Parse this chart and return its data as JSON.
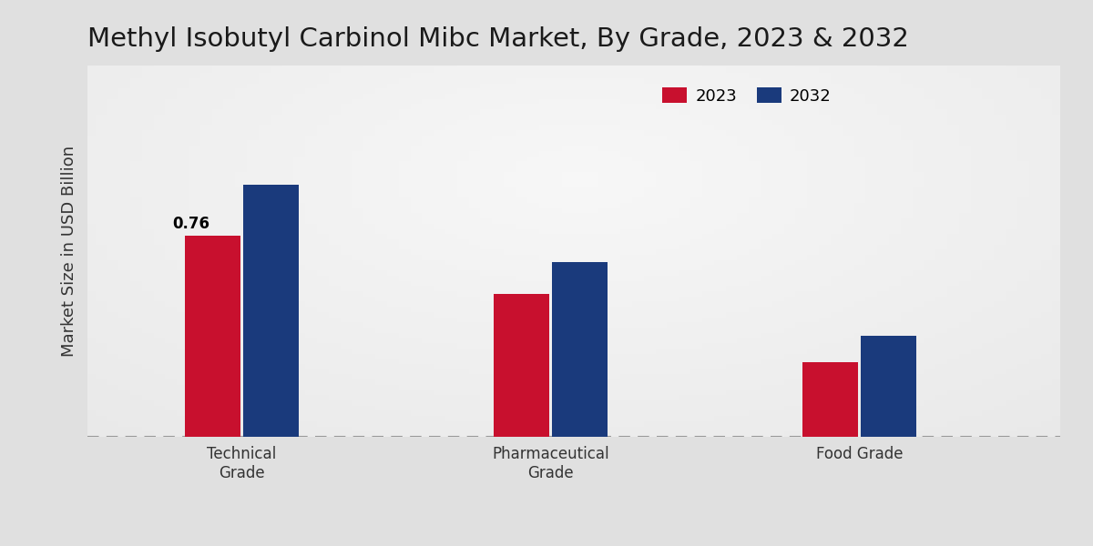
{
  "title": "Methyl Isobutyl Carbinol Mibc Market, By Grade, 2023 & 2032",
  "ylabel": "Market Size in USD Billion",
  "categories": [
    "Technical\nGrade",
    "Pharmaceutical\nGrade",
    "Food Grade"
  ],
  "values_2023": [
    0.76,
    0.54,
    0.28
  ],
  "values_2032": [
    0.95,
    0.66,
    0.38
  ],
  "color_2023": "#c8102e",
  "color_2032": "#1a3a7c",
  "background_color": "#e8e8e8",
  "annotation_2023": "0.76",
  "ylim": [
    0,
    1.4
  ],
  "bar_width": 0.18,
  "legend_labels": [
    "2023",
    "2032"
  ],
  "title_fontsize": 21,
  "axis_label_fontsize": 13,
  "tick_fontsize": 12,
  "legend_fontsize": 13,
  "annotation_fontsize": 12,
  "group_positions": [
    0.22,
    0.58,
    0.88
  ]
}
